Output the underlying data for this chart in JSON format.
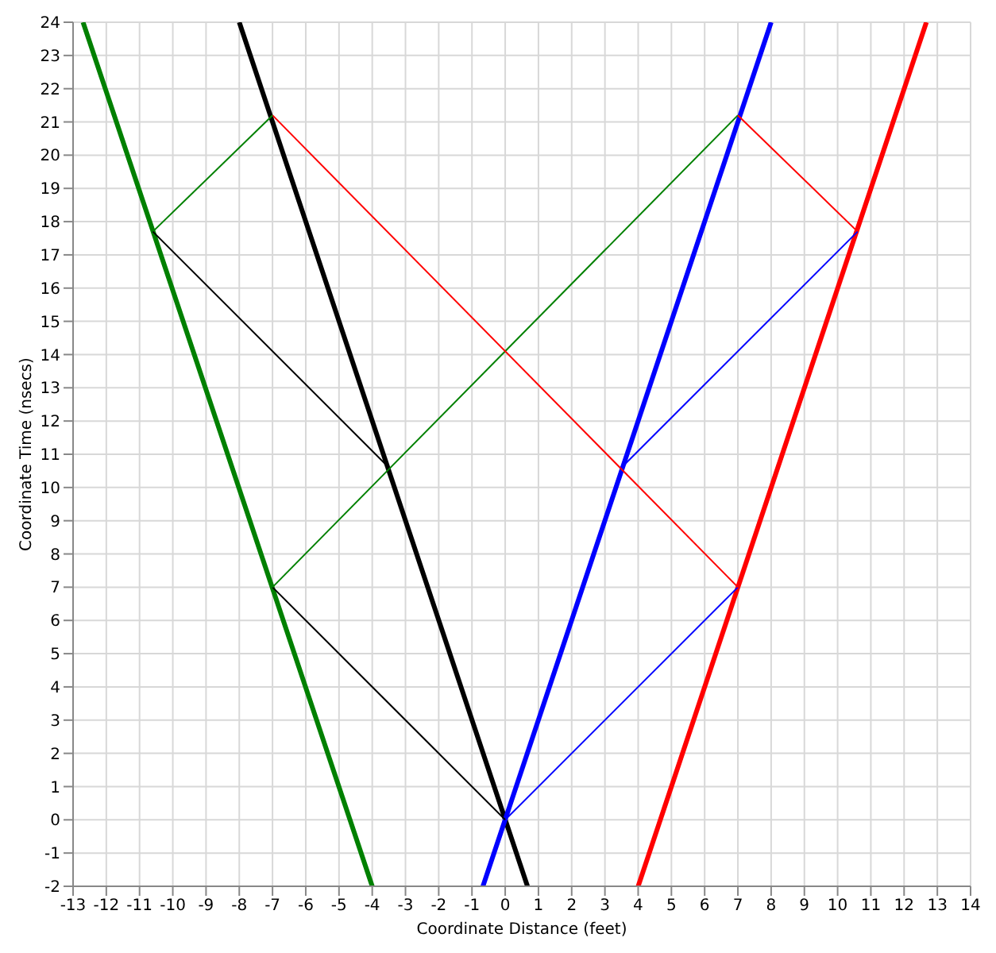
{
  "chart_data": {
    "type": "line",
    "xlabel": "Coordinate Distance (feet)",
    "ylabel": "Coordinate Time (nsecs)",
    "xlim": [
      -13,
      14
    ],
    "ylim": [
      -2,
      24
    ],
    "xticks": [
      -13,
      -12,
      -11,
      -10,
      -9,
      -8,
      -7,
      -6,
      -5,
      -4,
      -3,
      -2,
      -1,
      0,
      1,
      2,
      3,
      4,
      5,
      6,
      7,
      8,
      9,
      10,
      11,
      12,
      13,
      14
    ],
    "yticks": [
      -2,
      -1,
      0,
      1,
      2,
      3,
      4,
      5,
      6,
      7,
      8,
      9,
      10,
      11,
      12,
      13,
      14,
      15,
      16,
      17,
      18,
      19,
      20,
      21,
      22,
      23,
      24
    ],
    "grid": true,
    "marker": "none",
    "line_style": "solid",
    "series": [
      {
        "color": "#008000",
        "x": [
          -4,
          -12.7
        ],
        "values": [
          -2,
          24
        ]
      },
      {
        "color": "#000000",
        "x": [
          0.67,
          -8
        ],
        "values": [
          -2,
          24
        ]
      },
      {
        "color": "#0000ff",
        "x": [
          -0.67,
          8
        ],
        "values": [
          -2,
          24
        ]
      },
      {
        "color": "#ff0000",
        "x": [
          4,
          12.67
        ],
        "values": [
          -2,
          24
        ]
      },
      {
        "color": "#0000ff",
        "x": [
          0,
          7
        ],
        "values": [
          0,
          7
        ]
      },
      {
        "color": "#000000",
        "x": [
          0,
          -7
        ],
        "values": [
          0,
          7
        ]
      },
      {
        "color": "#008000",
        "x": [
          -7,
          7
        ],
        "values": [
          7,
          21.2
        ]
      },
      {
        "color": "#ff0000",
        "x": [
          7,
          -7
        ],
        "values": [
          7,
          21.2
        ]
      },
      {
        "color": "#ff0000",
        "x": [
          7,
          10.6
        ],
        "values": [
          21.2,
          17.7
        ]
      },
      {
        "color": "#008000",
        "x": [
          -7,
          -10.6
        ],
        "values": [
          21.2,
          17.7
        ]
      },
      {
        "color": "#0000ff",
        "x": [
          10.6,
          3.5
        ],
        "values": [
          17.7,
          10.6
        ]
      },
      {
        "color": "#000000",
        "x": [
          -10.6,
          -3.5
        ],
        "values": [
          17.7,
          10.6
        ]
      }
    ]
  }
}
